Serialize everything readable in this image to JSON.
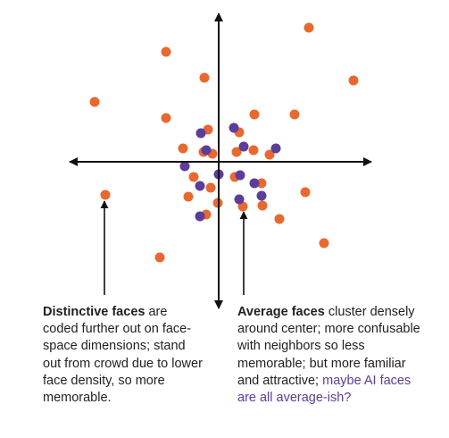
{
  "colors": {
    "orange": "#e8692f",
    "purple": "#5c3d99",
    "axis": "#111111",
    "text": "#1f1f1f"
  },
  "orange_dots": [
    [
      346,
      31
    ],
    [
      186,
      58
    ],
    [
      396,
      90
    ],
    [
      229,
      87
    ],
    [
      106,
      114
    ],
    [
      186,
      132
    ],
    [
      285,
      128
    ],
    [
      330,
      128
    ],
    [
      233,
      145
    ],
    [
      268,
      148
    ],
    [
      205,
      166
    ],
    [
      228,
      170
    ],
    [
      265,
      170
    ],
    [
      284,
      168
    ],
    [
      302,
      173
    ],
    [
      238,
      172
    ],
    [
      217,
      198
    ],
    [
      236,
      210
    ],
    [
      263,
      198
    ],
    [
      293,
      205
    ],
    [
      211,
      220
    ],
    [
      244,
      227
    ],
    [
      294,
      230
    ],
    [
      272,
      231
    ],
    [
      231,
      240
    ],
    [
      313,
      245
    ],
    [
      342,
      215
    ],
    [
      118,
      218
    ],
    [
      363,
      272
    ],
    [
      179,
      288
    ]
  ],
  "purple_dots": [
    [
      225,
      149
    ],
    [
      262,
      143
    ],
    [
      231,
      168
    ],
    [
      273,
      164
    ],
    [
      309,
      166
    ],
    [
      207,
      186
    ],
    [
      245,
      195
    ],
    [
      269,
      196
    ],
    [
      285,
      205
    ],
    [
      224,
      208
    ],
    [
      293,
      219
    ],
    [
      268,
      223
    ],
    [
      224,
      242
    ]
  ],
  "captions": {
    "left": {
      "bold": "Distinctive faces",
      "text": " are coded further out on face-space dimensions; stand out from crowd due to lower face density, so more memorable."
    },
    "right": {
      "bold": "Average faces",
      "text": " cluster densely around center; more confusable with neighbors so less memorable; but more familiar and attractive; ",
      "highlight": "maybe AI faces are all average-ish?"
    }
  }
}
